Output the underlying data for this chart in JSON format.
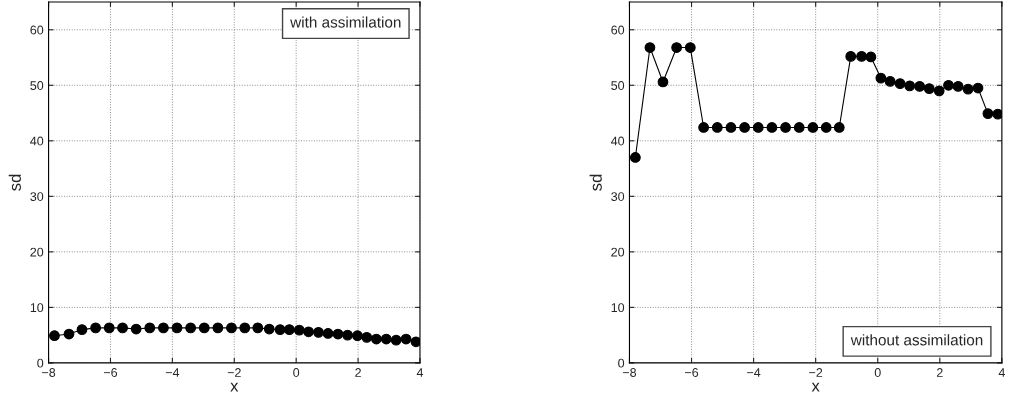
{
  "chart_data": [
    {
      "type": "line",
      "xlabel": "x",
      "ylabel": "sd",
      "xlim": [
        -8,
        4
      ],
      "ylim": [
        0,
        65
      ],
      "xticks": [
        -8,
        -6,
        -4,
        -2,
        0,
        2,
        4
      ],
      "yticks": [
        0,
        10,
        20,
        30,
        40,
        50,
        60
      ],
      "grid": true,
      "marker": "circle",
      "line_style": "solid",
      "annotations": [
        "with assimilation"
      ],
      "x": [
        -7.81,
        -7.34,
        -6.92,
        -6.48,
        -6.04,
        -5.61,
        -5.17,
        -4.73,
        -4.29,
        -3.85,
        -3.41,
        -2.97,
        -2.53,
        -2.09,
        -1.66,
        -1.24,
        -0.87,
        -0.52,
        -0.22,
        0.1,
        0.4,
        0.72,
        1.03,
        1.35,
        1.66,
        1.98,
        2.28,
        2.59,
        2.91,
        3.23,
        3.55,
        3.87
      ],
      "series": [
        {
          "color": "#000000",
          "values": [
            4.9,
            5.2,
            6.0,
            6.3,
            6.3,
            6.3,
            6.1,
            6.3,
            6.3,
            6.3,
            6.3,
            6.3,
            6.3,
            6.3,
            6.3,
            6.3,
            6.1,
            6.0,
            6.0,
            5.9,
            5.6,
            5.5,
            5.3,
            5.2,
            5.0,
            4.9,
            4.6,
            4.3,
            4.3,
            4.1,
            4.3,
            3.8
          ]
        }
      ]
    },
    {
      "type": "line",
      "xlabel": "x",
      "ylabel": "sd",
      "xlim": [
        -8,
        4
      ],
      "ylim": [
        0,
        65
      ],
      "xticks": [
        -8,
        -6,
        -4,
        -2,
        0,
        2,
        4
      ],
      "yticks": [
        0,
        10,
        20,
        30,
        40,
        50,
        60
      ],
      "grid": true,
      "marker": "circle",
      "line_style": "solid",
      "annotations": [
        "without assimilation"
      ],
      "x": [
        -7.81,
        -7.34,
        -6.92,
        -6.48,
        -6.04,
        -5.61,
        -5.17,
        -4.73,
        -4.29,
        -3.85,
        -3.41,
        -2.97,
        -2.53,
        -2.09,
        -1.66,
        -1.24,
        -0.87,
        -0.52,
        -0.22,
        0.1,
        0.4,
        0.72,
        1.03,
        1.35,
        1.66,
        1.98,
        2.28,
        2.59,
        2.91,
        3.23,
        3.55,
        3.87
      ],
      "series": [
        {
          "color": "#000000",
          "values": [
            37.0,
            56.8,
            50.6,
            56.8,
            56.8,
            42.4,
            42.4,
            42.4,
            42.4,
            42.4,
            42.4,
            42.4,
            42.4,
            42.4,
            42.4,
            42.4,
            55.2,
            55.2,
            55.1,
            51.3,
            50.7,
            50.3,
            49.9,
            49.8,
            49.4,
            49.0,
            50.0,
            49.8,
            49.3,
            49.5,
            44.9,
            44.8
          ]
        }
      ]
    }
  ]
}
